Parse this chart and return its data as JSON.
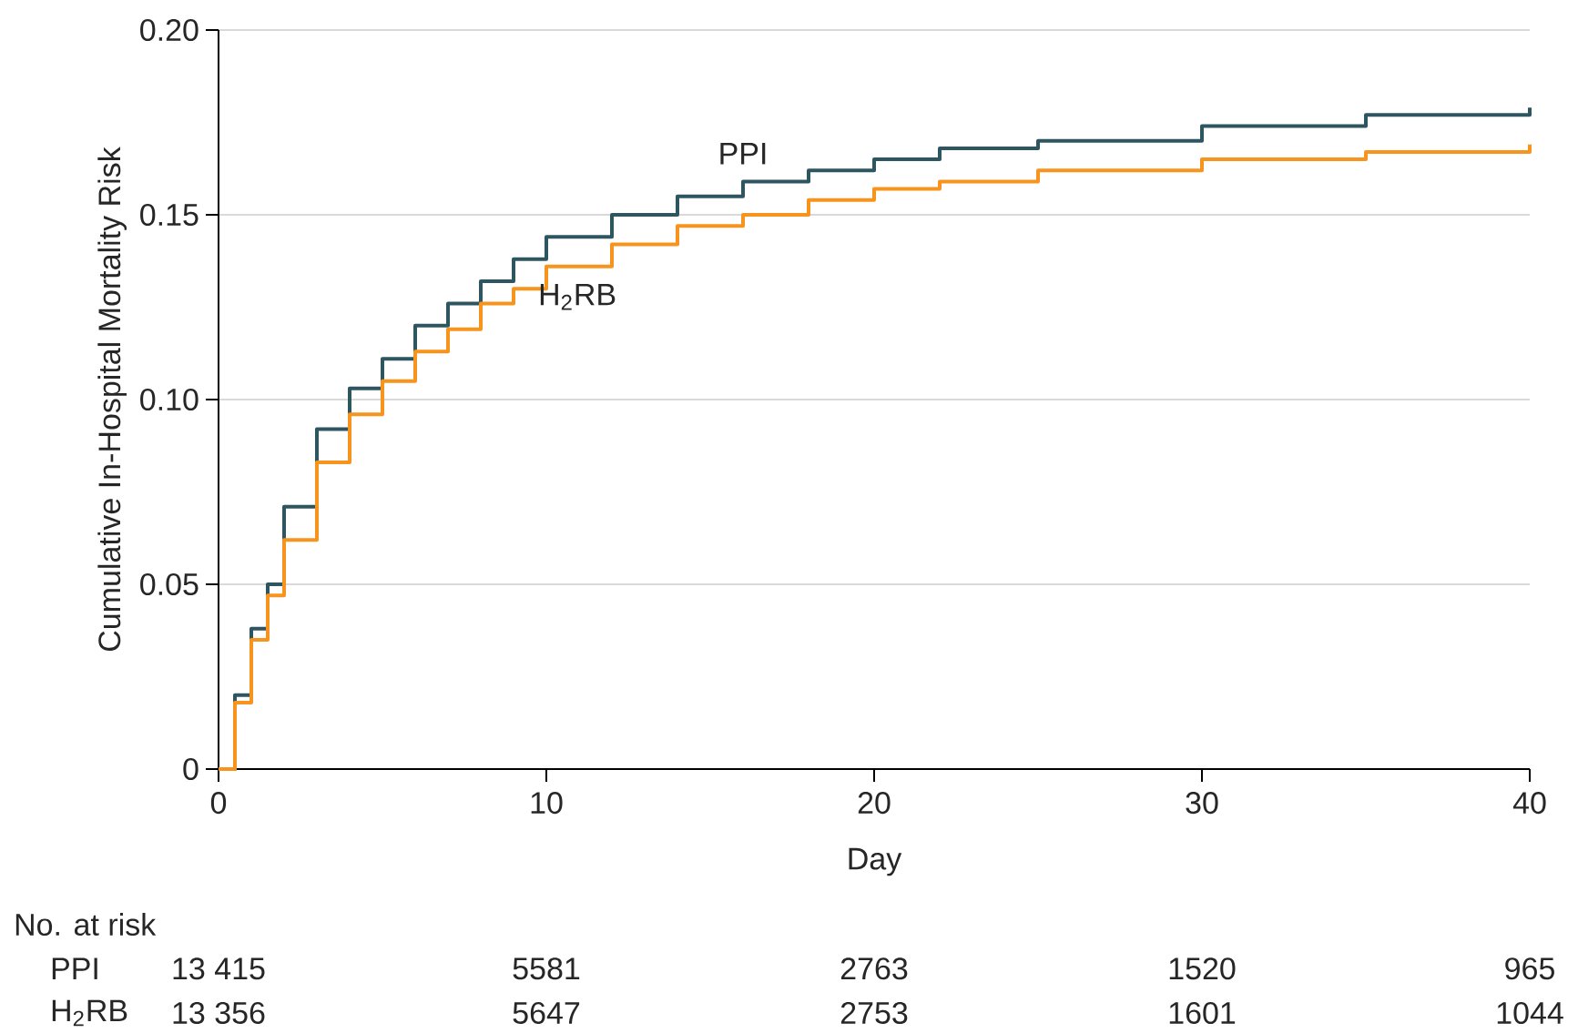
{
  "chart_data": {
    "type": "step",
    "xlabel": "Day",
    "ylabel": "Cumulative In-Hospital Mortality Risk",
    "x": [
      0,
      0.5,
      1,
      1.5,
      2,
      3,
      4,
      5,
      6,
      7,
      8,
      9,
      10,
      12,
      14,
      16,
      18,
      20,
      22,
      25,
      30,
      35,
      40
    ],
    "series": [
      {
        "name": "PPI",
        "color": "#2e5661",
        "values": [
          0,
          0.02,
          0.038,
          0.05,
          0.071,
          0.092,
          0.103,
          0.111,
          0.12,
          0.126,
          0.132,
          0.138,
          0.144,
          0.15,
          0.155,
          0.159,
          0.162,
          0.165,
          0.168,
          0.17,
          0.174,
          0.177,
          0.179
        ]
      },
      {
        "name": "H$_{2}$RB",
        "color": "#f7941d",
        "values": [
          0,
          0.018,
          0.035,
          0.047,
          0.062,
          0.083,
          0.096,
          0.105,
          0.113,
          0.119,
          0.126,
          0.13,
          0.136,
          0.142,
          0.147,
          0.15,
          0.154,
          0.157,
          0.159,
          0.162,
          0.165,
          0.167,
          0.169
        ]
      }
    ],
    "xlim": [
      0,
      40
    ],
    "xticks": [
      0,
      10,
      20,
      30,
      40
    ],
    "ylim": [
      0,
      0.2
    ],
    "yticks": [
      0,
      0.05,
      {
        "value": 0.1,
        "label": "0.10"
      },
      0.15,
      {
        "value": 0.2,
        "label": "0.20"
      }
    ],
    "grid": "y",
    "annotations": [
      "No. at risk",
      "PPI",
      "13 415",
      "5581",
      "2763",
      "1520",
      "965",
      "H$_{2}$RB",
      "13 356",
      "5647",
      "2753",
      "1601",
      "1044"
    ]
  }
}
